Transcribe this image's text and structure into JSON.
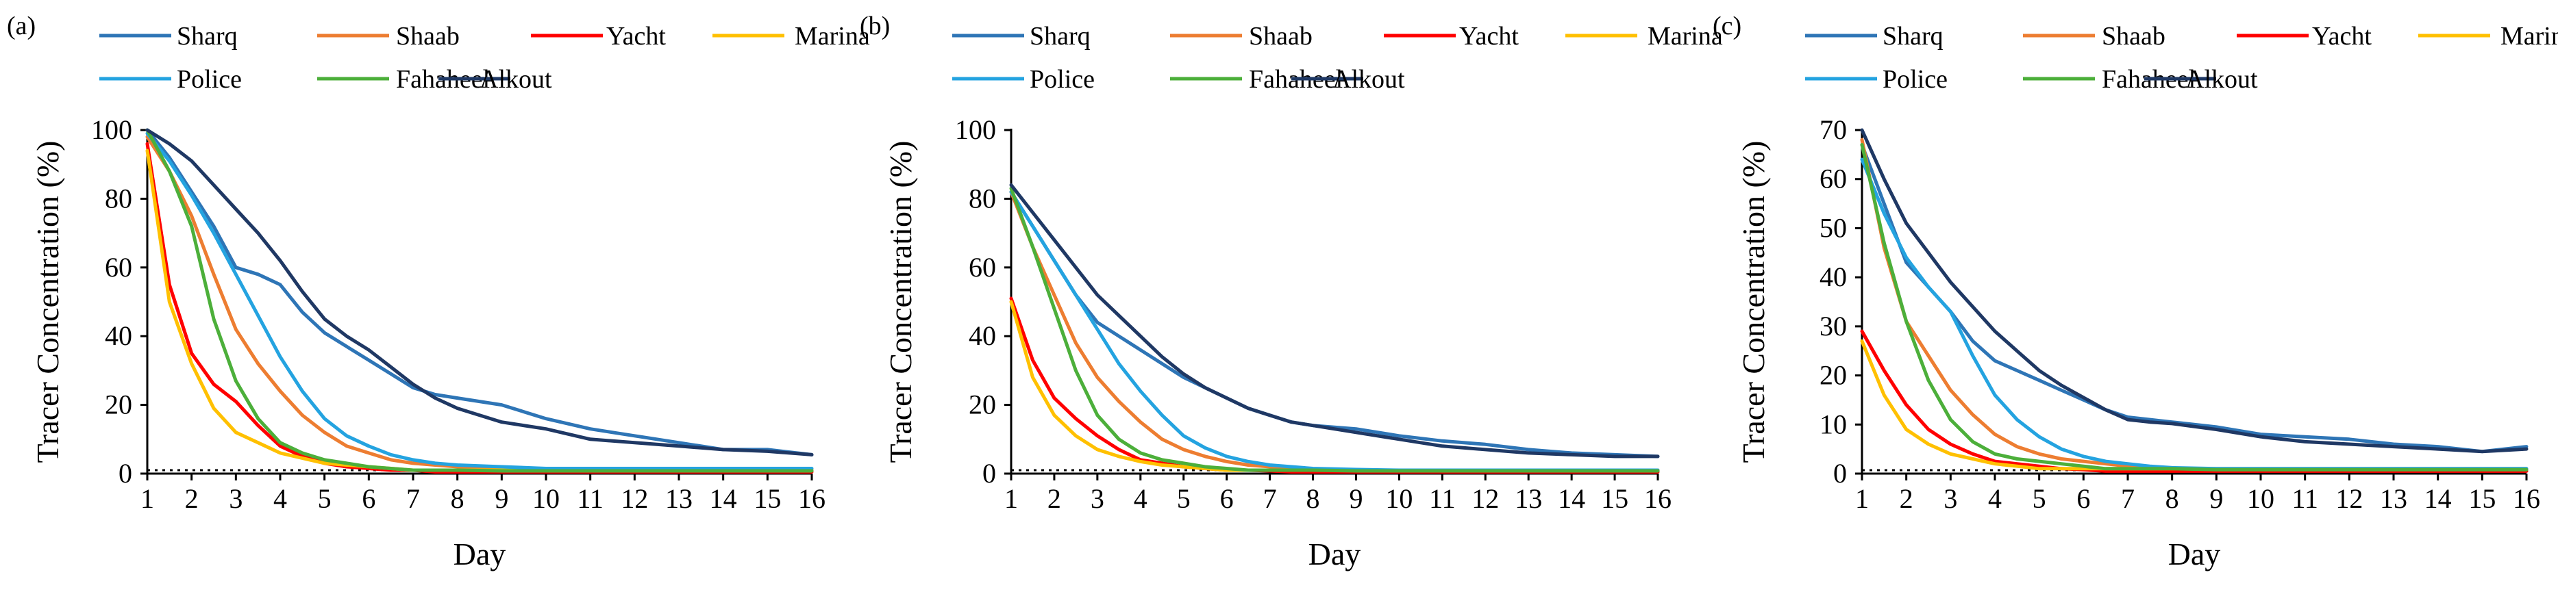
{
  "chart_data": [
    {
      "type": "line",
      "panel_label": "(a)",
      "xlabel": "Day",
      "ylabel": "Tracer Concentration (%)",
      "xlim": [
        1,
        16
      ],
      "ylim": [
        0,
        100
      ],
      "xticks": [
        "1",
        "2",
        "3",
        "4",
        "5",
        "6",
        "7",
        "8",
        "9",
        "10",
        "11",
        "12",
        "13",
        "14",
        "15",
        "16"
      ],
      "yticks": [
        "0",
        "20",
        "40",
        "60",
        "80",
        "100"
      ],
      "x": [
        1,
        1.5,
        2,
        2.5,
        3,
        3.5,
        4,
        4.5,
        5,
        5.5,
        6,
        6.5,
        7,
        7.5,
        8,
        9,
        10,
        11,
        12,
        13,
        14,
        15,
        16
      ],
      "series": [
        {
          "name": "Sharq",
          "color": "#2e75b6",
          "values": [
            100,
            92,
            82,
            72,
            60,
            58,
            55,
            47,
            41,
            37,
            33,
            29,
            25,
            23,
            22,
            20,
            16,
            13,
            11,
            9,
            7,
            7,
            5.5
          ]
        },
        {
          "name": "Shaab",
          "color": "#ed7d31",
          "values": [
            98,
            88,
            75,
            58,
            42,
            32,
            24,
            17,
            12,
            8,
            6,
            4,
            3,
            2.5,
            2,
            1.5,
            1,
            1,
            1,
            1,
            1,
            1,
            1
          ]
        },
        {
          "name": "Yacht",
          "color": "#ff0000",
          "values": [
            96,
            55,
            35,
            26,
            21,
            14,
            8,
            5,
            3,
            2,
            1.5,
            1,
            1,
            0.5,
            0.5,
            0.5,
            0.5,
            0.5,
            0.5,
            0.5,
            0.5,
            0.5,
            0.5
          ]
        },
        {
          "name": "Marina",
          "color": "#ffc000",
          "values": [
            94,
            50,
            32,
            19,
            12,
            9,
            6,
            4.5,
            3,
            2.5,
            2,
            1.5,
            1,
            1,
            1,
            1,
            1,
            1,
            1,
            1,
            1,
            1,
            1
          ]
        },
        {
          "name": "Police",
          "color": "#24a3e0",
          "values": [
            99,
            91,
            81,
            70,
            58,
            46,
            34,
            24,
            16,
            11,
            8,
            5.5,
            4,
            3,
            2.5,
            2,
            1.5,
            1.5,
            1.5,
            1.5,
            1.5,
            1.5,
            1.5
          ]
        },
        {
          "name": "Fahaheel",
          "color": "#4caf3a",
          "values": [
            100,
            88,
            72,
            45,
            27,
            16,
            9,
            6,
            4,
            3,
            2,
            1.5,
            1,
            1,
            1,
            0.8,
            0.8,
            0.8,
            0.8,
            0.8,
            0.8,
            0.8,
            0.8
          ]
        },
        {
          "name": "Alkout",
          "color": "#1f3864",
          "values": [
            100,
            96,
            91,
            84,
            77,
            70,
            62,
            53,
            45,
            40,
            36,
            31,
            26,
            22,
            19,
            15,
            13,
            10,
            9,
            8,
            7,
            6.5,
            5.5
          ]
        }
      ]
    },
    {
      "type": "line",
      "panel_label": "(b)",
      "xlabel": "Day",
      "ylabel": "Tracer Concentration (%)",
      "xlim": [
        1,
        16
      ],
      "ylim": [
        0,
        100
      ],
      "xticks": [
        "1",
        "2",
        "3",
        "4",
        "5",
        "6",
        "7",
        "8",
        "9",
        "10",
        "11",
        "12",
        "13",
        "14",
        "15",
        "16"
      ],
      "yticks": [
        "0",
        "20",
        "40",
        "60",
        "80",
        "100"
      ],
      "x": [
        1,
        1.5,
        2,
        2.5,
        3,
        3.5,
        4,
        4.5,
        5,
        5.5,
        6,
        6.5,
        7,
        7.5,
        8,
        9,
        10,
        11,
        12,
        13,
        14,
        15,
        16
      ],
      "series": [
        {
          "name": "Sharq",
          "color": "#2e75b6",
          "values": [
            82,
            72,
            62,
            52,
            44,
            40,
            36,
            32,
            28,
            25,
            22,
            19,
            17,
            15,
            14,
            13,
            11,
            9.5,
            8.5,
            7,
            6,
            5.5,
            5
          ]
        },
        {
          "name": "Shaab",
          "color": "#ed7d31",
          "values": [
            82,
            66,
            52,
            38,
            28,
            21,
            15,
            10,
            7,
            5,
            3.5,
            2.5,
            2,
            1.5,
            1.2,
            1,
            1,
            1,
            1,
            1,
            1,
            1,
            1
          ]
        },
        {
          "name": "Yacht",
          "color": "#ff0000",
          "values": [
            51,
            33,
            22,
            16,
            11,
            7,
            4,
            3,
            2,
            1.5,
            1,
            1,
            0.8,
            0.5,
            0.5,
            0.5,
            0.5,
            0.5,
            0.5,
            0.5,
            0.5,
            0.5,
            0.5
          ]
        },
        {
          "name": "Marina",
          "color": "#ffc000",
          "values": [
            50,
            28,
            17,
            11,
            7,
            5,
            3.5,
            2.5,
            2,
            1.5,
            1,
            1,
            1,
            1,
            1,
            1,
            1,
            1,
            1,
            1,
            1,
            1,
            1
          ]
        },
        {
          "name": "Police",
          "color": "#24a3e0",
          "values": [
            82,
            72,
            62,
            52,
            42,
            32,
            24,
            17,
            11,
            7.5,
            5,
            3.5,
            2.5,
            2,
            1.5,
            1.2,
            1,
            1,
            1,
            1,
            1,
            1,
            1
          ]
        },
        {
          "name": "Fahaheel",
          "color": "#4caf3a",
          "values": [
            83,
            66,
            48,
            30,
            17,
            10,
            6,
            4,
            3,
            2,
            1.5,
            1,
            1,
            1,
            1,
            0.8,
            0.8,
            0.8,
            0.8,
            0.8,
            0.8,
            0.8,
            0.8
          ]
        },
        {
          "name": "Alkout",
          "color": "#1f3864",
          "values": [
            84,
            76,
            68,
            60,
            52,
            46,
            40,
            34,
            29,
            25,
            22,
            19,
            17,
            15,
            14,
            12,
            10,
            8,
            7,
            6,
            5.5,
            5,
            5
          ]
        }
      ]
    },
    {
      "type": "line",
      "panel_label": "(c)",
      "xlabel": "Day",
      "ylabel": "Tracer Concentration (%)",
      "xlim": [
        1,
        16
      ],
      "ylim": [
        0,
        70
      ],
      "xticks": [
        "1",
        "2",
        "3",
        "4",
        "5",
        "6",
        "7",
        "8",
        "9",
        "10",
        "11",
        "12",
        "13",
        "14",
        "15",
        "16"
      ],
      "yticks": [
        "0",
        "10",
        "20",
        "30",
        "40",
        "50",
        "60",
        "70"
      ],
      "x": [
        1,
        1.5,
        2,
        2.5,
        3,
        3.5,
        4,
        4.5,
        5,
        5.5,
        6,
        6.5,
        7,
        7.5,
        8,
        9,
        10,
        11,
        12,
        13,
        14,
        15,
        16
      ],
      "series": [
        {
          "name": "Sharq",
          "color": "#2e75b6",
          "values": [
            67,
            55,
            43,
            38,
            33,
            27,
            23,
            21,
            19,
            17,
            15,
            13,
            11.5,
            11,
            10.5,
            9.5,
            8,
            7.5,
            7,
            6,
            5.5,
            4.5,
            5.5
          ]
        },
        {
          "name": "Shaab",
          "color": "#ed7d31",
          "values": [
            68,
            46,
            31,
            24,
            17,
            12,
            8,
            5.5,
            4,
            3,
            2.5,
            2,
            1.5,
            1.2,
            1,
            0.8,
            0.8,
            0.8,
            0.8,
            0.8,
            0.8,
            0.8,
            0.8
          ]
        },
        {
          "name": "Yacht",
          "color": "#ff0000",
          "values": [
            29,
            21,
            14,
            9,
            6,
            4,
            2.5,
            2,
            1.5,
            1,
            0.8,
            0.5,
            0.5,
            0.5,
            0.5,
            0.5,
            0.5,
            0.5,
            0.5,
            0.5,
            0.5,
            0.5,
            0.5
          ]
        },
        {
          "name": "Marina",
          "color": "#ffc000",
          "values": [
            27,
            16,
            9,
            6,
            4,
            3,
            2,
            1.5,
            1,
            1,
            1,
            1,
            1,
            1,
            1,
            1,
            1,
            1,
            1,
            1,
            1,
            1,
            1
          ]
        },
        {
          "name": "Police",
          "color": "#24a3e0",
          "values": [
            64,
            53,
            44,
            38,
            33,
            24,
            16,
            11,
            7.5,
            5,
            3.5,
            2.5,
            2,
            1.5,
            1.2,
            1,
            1,
            1,
            1,
            1,
            1,
            1,
            1
          ]
        },
        {
          "name": "Fahaheel",
          "color": "#4caf3a",
          "values": [
            67,
            47,
            31,
            19,
            11,
            6.5,
            4,
            3,
            2.5,
            2,
            1.5,
            1,
            1,
            1,
            1,
            0.8,
            0.8,
            0.8,
            0.8,
            0.8,
            0.8,
            0.8,
            0.8
          ]
        },
        {
          "name": "Alkout",
          "color": "#1f3864",
          "values": [
            70,
            60,
            51,
            45,
            39,
            34,
            29,
            25,
            21,
            18,
            15.5,
            13,
            11,
            10.5,
            10.2,
            9,
            7.5,
            6.5,
            6,
            5.5,
            5,
            4.5,
            5
          ]
        }
      ]
    }
  ]
}
